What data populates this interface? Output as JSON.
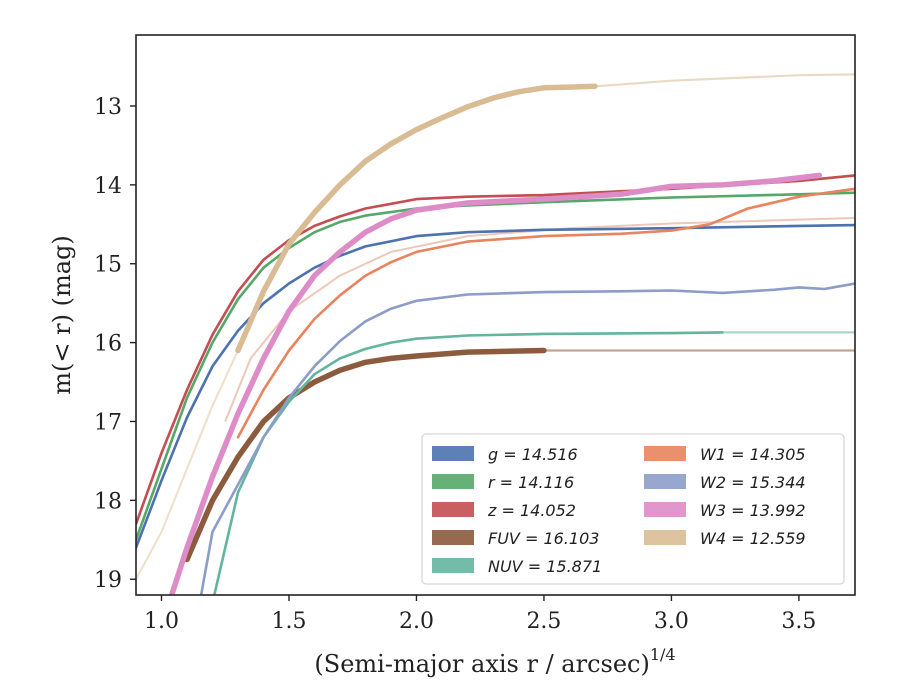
{
  "chart_data": {
    "type": "line",
    "title": "",
    "xlabel": "(Semi-major axis r / arcsec)",
    "xlabel_sup": "1/4",
    "ylabel": "m(< r) (mag)",
    "xlim": [
      0.9,
      3.72
    ],
    "ylim": [
      19.2,
      12.1
    ],
    "y_inverted": true,
    "xticks": [
      1.0,
      1.5,
      2.0,
      2.5,
      3.0,
      3.5
    ],
    "xtick_labels": [
      "1.0",
      "1.5",
      "2.0",
      "2.5",
      "3.0",
      "3.5"
    ],
    "yticks": [
      13,
      14,
      15,
      16,
      17,
      18,
      19
    ],
    "ytick_labels": [
      "13",
      "14",
      "15",
      "16",
      "17",
      "18",
      "19"
    ],
    "grid": false,
    "legend_position": "bottom-right",
    "series": [
      {
        "name": "g = 14.516",
        "color": "#4c72b0",
        "x": [
          0.9,
          1.0,
          1.1,
          1.2,
          1.3,
          1.4,
          1.5,
          1.6,
          1.7,
          1.8,
          2.0,
          2.2,
          2.5,
          3.0,
          3.5,
          3.72
        ],
        "y": [
          18.6,
          17.75,
          16.95,
          16.3,
          15.85,
          15.5,
          15.25,
          15.05,
          14.9,
          14.78,
          14.65,
          14.6,
          14.57,
          14.55,
          14.52,
          14.51
        ]
      },
      {
        "name": "r = 14.116",
        "color": "#55a868",
        "x": [
          0.9,
          1.0,
          1.1,
          1.2,
          1.3,
          1.4,
          1.5,
          1.6,
          1.7,
          1.8,
          2.0,
          2.2,
          2.5,
          3.0,
          3.5,
          3.72
        ],
        "y": [
          18.5,
          17.6,
          16.7,
          16.0,
          15.45,
          15.05,
          14.8,
          14.6,
          14.47,
          14.39,
          14.3,
          14.26,
          14.22,
          14.16,
          14.12,
          14.1
        ]
      },
      {
        "name": "z = 14.052",
        "color": "#c44e52",
        "x": [
          0.9,
          1.0,
          1.1,
          1.2,
          1.3,
          1.4,
          1.5,
          1.6,
          1.7,
          1.8,
          2.0,
          2.2,
          2.5,
          3.0,
          3.5,
          3.72
        ],
        "y": [
          18.3,
          17.4,
          16.6,
          15.9,
          15.35,
          14.95,
          14.7,
          14.52,
          14.4,
          14.3,
          14.18,
          14.15,
          14.13,
          14.05,
          13.95,
          13.88
        ]
      },
      {
        "name": "FUV = 16.103",
        "color": "#8c5a3c",
        "x": [
          1.1,
          1.2,
          1.3,
          1.4,
          1.5,
          1.6,
          1.7,
          1.8,
          1.9,
          2.0,
          2.2,
          2.5,
          3.0,
          3.5,
          3.72
        ],
        "y": [
          18.75,
          18.0,
          17.45,
          17.0,
          16.7,
          16.5,
          16.35,
          16.25,
          16.2,
          16.17,
          16.12,
          16.1,
          16.1,
          16.1,
          16.1
        ],
        "solid_until": 2.5
      },
      {
        "name": "NUV = 15.871",
        "color": "#64b5a0",
        "x": [
          1.2,
          1.3,
          1.4,
          1.5,
          1.6,
          1.7,
          1.8,
          1.9,
          2.0,
          2.2,
          2.5,
          3.0,
          3.2,
          3.5,
          3.72
        ],
        "y": [
          19.3,
          17.9,
          17.2,
          16.75,
          16.4,
          16.2,
          16.08,
          16.0,
          15.95,
          15.91,
          15.89,
          15.88,
          15.87,
          15.87,
          15.87
        ],
        "solid_until": 3.2
      },
      {
        "name": "W1 = 14.305",
        "color": "#e8845f",
        "x": [
          1.3,
          1.4,
          1.5,
          1.6,
          1.7,
          1.8,
          1.9,
          2.0,
          2.2,
          2.5,
          2.8,
          3.0,
          3.15,
          3.3,
          3.5,
          3.72
        ],
        "y": [
          17.2,
          16.6,
          16.1,
          15.7,
          15.4,
          15.15,
          14.98,
          14.85,
          14.72,
          14.65,
          14.62,
          14.58,
          14.5,
          14.3,
          14.15,
          14.05
        ],
        "solid_until": 3.72
      },
      {
        "name": "W2 = 15.344",
        "color": "#8c9dc8",
        "x": [
          1.15,
          1.2,
          1.3,
          1.4,
          1.5,
          1.6,
          1.7,
          1.8,
          1.9,
          2.0,
          2.2,
          2.5,
          2.8,
          3.0,
          3.2,
          3.4,
          3.5,
          3.6,
          3.72
        ],
        "y": [
          19.3,
          18.4,
          17.8,
          17.2,
          16.7,
          16.3,
          15.98,
          15.73,
          15.57,
          15.47,
          15.39,
          15.36,
          15.35,
          15.34,
          15.37,
          15.33,
          15.3,
          15.32,
          15.25
        ],
        "solid_until": 3.72
      },
      {
        "name": "W3 = 13.992",
        "color": "#dd8cc8",
        "x": [
          1.0,
          1.1,
          1.2,
          1.3,
          1.4,
          1.5,
          1.6,
          1.7,
          1.8,
          1.9,
          2.0,
          2.2,
          2.5,
          2.8,
          3.0,
          3.2,
          3.4,
          3.58
        ],
        "y": [
          19.6,
          18.6,
          17.7,
          16.9,
          16.2,
          15.6,
          15.15,
          14.85,
          14.6,
          14.43,
          14.32,
          14.23,
          14.18,
          14.12,
          14.02,
          14.0,
          13.95,
          13.88
        ],
        "solid_until": 3.58
      },
      {
        "name": "W4 = 12.559",
        "color": "#d9bc94",
        "x": [
          1.3,
          1.4,
          1.5,
          1.6,
          1.7,
          1.8,
          1.9,
          2.0,
          2.1,
          2.2,
          2.3,
          2.4,
          2.5,
          2.6,
          2.7,
          3.0,
          3.5,
          3.72
        ],
        "y": [
          16.1,
          15.35,
          14.75,
          14.35,
          14.0,
          13.7,
          13.48,
          13.3,
          13.15,
          13.01,
          12.9,
          12.82,
          12.77,
          12.76,
          12.75,
          12.68,
          12.61,
          12.6
        ],
        "solid_until": 2.7
      }
    ],
    "extended_curves": [
      {
        "color": "#e8b4a0",
        "x": [
          1.25,
          1.35,
          1.5,
          1.7,
          1.9,
          2.2,
          2.6,
          3.0,
          3.5,
          3.72
        ],
        "y": [
          17.0,
          16.2,
          15.6,
          15.15,
          14.85,
          14.65,
          14.55,
          14.49,
          14.44,
          14.42
        ]
      },
      {
        "color": "#e8d4b8",
        "x": [
          0.9,
          1.0,
          1.1,
          1.2,
          1.3
        ],
        "y": [
          19.0,
          18.4,
          17.6,
          16.8,
          16.1
        ]
      }
    ],
    "legend": {
      "columns": [
        [
          {
            "label": "g = 14.516",
            "color": "#4c72b0"
          },
          {
            "label": "r = 14.116",
            "color": "#55a868"
          },
          {
            "label": "z = 14.052",
            "color": "#c44e52"
          },
          {
            "label": "FUV = 16.103",
            "color": "#8c5a3c"
          },
          {
            "label": "NUV = 15.871",
            "color": "#64b5a0"
          }
        ],
        [
          {
            "label": "W1 = 14.305",
            "color": "#e8845f"
          },
          {
            "label": "W2 = 15.344",
            "color": "#8c9dc8"
          },
          {
            "label": "W3 = 13.992",
            "color": "#dd8cc8"
          },
          {
            "label": "W4 = 12.559",
            "color": "#d9bc94"
          }
        ]
      ]
    }
  }
}
